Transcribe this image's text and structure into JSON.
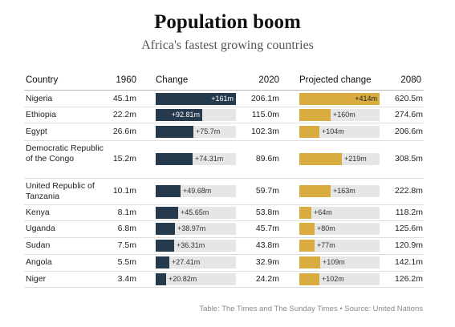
{
  "title": "Population boom",
  "subtitle": "Africa's fastest growing countries",
  "headers": {
    "country": "Country",
    "y1960": "1960",
    "change": "Change",
    "y2020": "2020",
    "projected": "Projected change",
    "y2080": "2080"
  },
  "source": "Table: The Times and The Sunday Times • Source: United Nations",
  "colors": {
    "change_bar": "#263a4d",
    "projected_bar": "#d8ac3e",
    "track": "#e6e6e6"
  },
  "chart_data": {
    "type": "table",
    "columns": [
      "Country",
      "1960",
      "Change",
      "2020",
      "Projected change",
      "2080"
    ],
    "change_max_m": 161,
    "projected_max_m": 414,
    "rows": [
      {
        "country": "Nigeria",
        "y1960": "45.1m",
        "change": 161,
        "change_label": "+161m",
        "y2020": "206.1m",
        "projected": 414,
        "projected_label": "+414m",
        "y2080": "620.5m"
      },
      {
        "country": "Ethiopia",
        "y1960": "22.2m",
        "change": 92.81,
        "change_label": "+92.81m",
        "y2020": "115.0m",
        "projected": 160,
        "projected_label": "+160m",
        "y2080": "274.6m"
      },
      {
        "country": "Egypt",
        "y1960": "26.6m",
        "change": 75.7,
        "change_label": "+75.7m",
        "y2020": "102.3m",
        "projected": 104,
        "projected_label": "+104m",
        "y2080": "206.6m"
      },
      {
        "country": "Democratic Republic of the Congo",
        "y1960": "15.2m",
        "change": 74.31,
        "change_label": "+74.31m",
        "y2020": "89.6m",
        "projected": 219,
        "projected_label": "+219m",
        "y2080": "308.5m"
      },
      {
        "country": "United Republic of Tanzania",
        "y1960": "10.1m",
        "change": 49.68,
        "change_label": "+49.68m",
        "y2020": "59.7m",
        "projected": 163,
        "projected_label": "+163m",
        "y2080": "222.8m"
      },
      {
        "country": "Kenya",
        "y1960": "8.1m",
        "change": 45.65,
        "change_label": "+45.65m",
        "y2020": "53.8m",
        "projected": 64,
        "projected_label": "+64m",
        "y2080": "118.2m"
      },
      {
        "country": "Uganda",
        "y1960": "6.8m",
        "change": 38.97,
        "change_label": "+38.97m",
        "y2020": "45.7m",
        "projected": 80,
        "projected_label": "+80m",
        "y2080": "125.6m"
      },
      {
        "country": "Sudan",
        "y1960": "7.5m",
        "change": 36.31,
        "change_label": "+36.31m",
        "y2020": "43.8m",
        "projected": 77,
        "projected_label": "+77m",
        "y2080": "120.9m"
      },
      {
        "country": "Angola",
        "y1960": "5.5m",
        "change": 27.41,
        "change_label": "+27.41m",
        "y2020": "32.9m",
        "projected": 109,
        "projected_label": "+109m",
        "y2080": "142.1m"
      },
      {
        "country": "Niger",
        "y1960": "3.4m",
        "change": 20.82,
        "change_label": "+20.82m",
        "y2020": "24.2m",
        "projected": 102,
        "projected_label": "+102m",
        "y2080": "126.2m"
      }
    ]
  }
}
